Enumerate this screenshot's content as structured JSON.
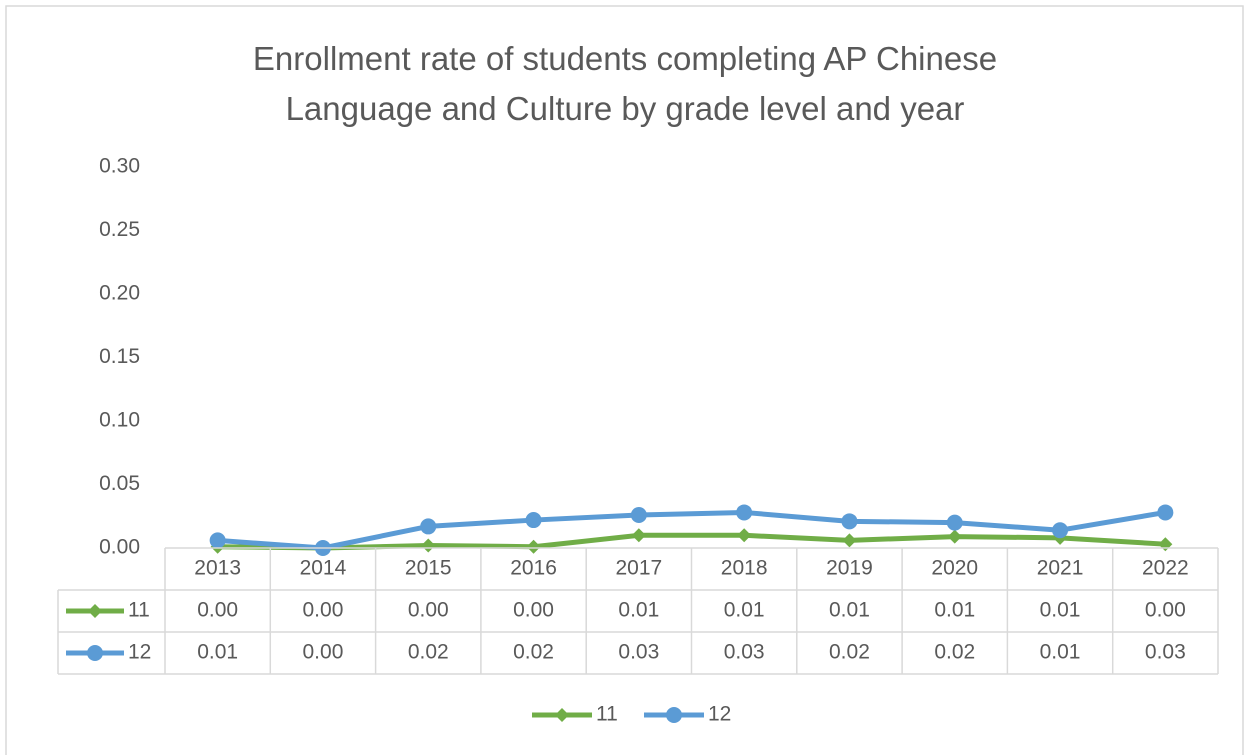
{
  "chart_data": {
    "type": "line",
    "title": "Enrollment rate of students completing AP Chinese Language and Culture by grade level and year",
    "categories": [
      "2013",
      "2014",
      "2015",
      "2016",
      "2017",
      "2018",
      "2019",
      "2020",
      "2021",
      "2022"
    ],
    "series": [
      {
        "name": "11",
        "color": "#70ad47",
        "marker": "diamond",
        "values": [
          0.001,
          0.0,
          0.002,
          0.001,
          0.01,
          0.01,
          0.006,
          0.009,
          0.008,
          0.003
        ],
        "value_labels": [
          "0.00",
          "0.00",
          "0.00",
          "0.00",
          "0.01",
          "0.01",
          "0.01",
          "0.01",
          "0.01",
          "0.00"
        ]
      },
      {
        "name": "12",
        "color": "#5b9bd5",
        "marker": "circle",
        "values": [
          0.006,
          0.0,
          0.017,
          0.022,
          0.026,
          0.028,
          0.021,
          0.02,
          0.014,
          0.028
        ],
        "value_labels": [
          "0.01",
          "0.00",
          "0.02",
          "0.02",
          "0.03",
          "0.03",
          "0.02",
          "0.02",
          "0.01",
          "0.03"
        ]
      }
    ],
    "ylim": [
      0,
      0.3
    ],
    "yticks": [
      {
        "value": 0,
        "label": "0.00"
      },
      {
        "value": 0.05,
        "label": "0.05"
      },
      {
        "value": 0.1,
        "label": "0.10"
      },
      {
        "value": 0.15,
        "label": "0.15"
      },
      {
        "value": 0.2,
        "label": "0.20"
      },
      {
        "value": 0.25,
        "label": "0.25"
      },
      {
        "value": 0.3,
        "label": "0.30"
      }
    ],
    "grid": false,
    "data_table": true,
    "legend": "bottom"
  }
}
